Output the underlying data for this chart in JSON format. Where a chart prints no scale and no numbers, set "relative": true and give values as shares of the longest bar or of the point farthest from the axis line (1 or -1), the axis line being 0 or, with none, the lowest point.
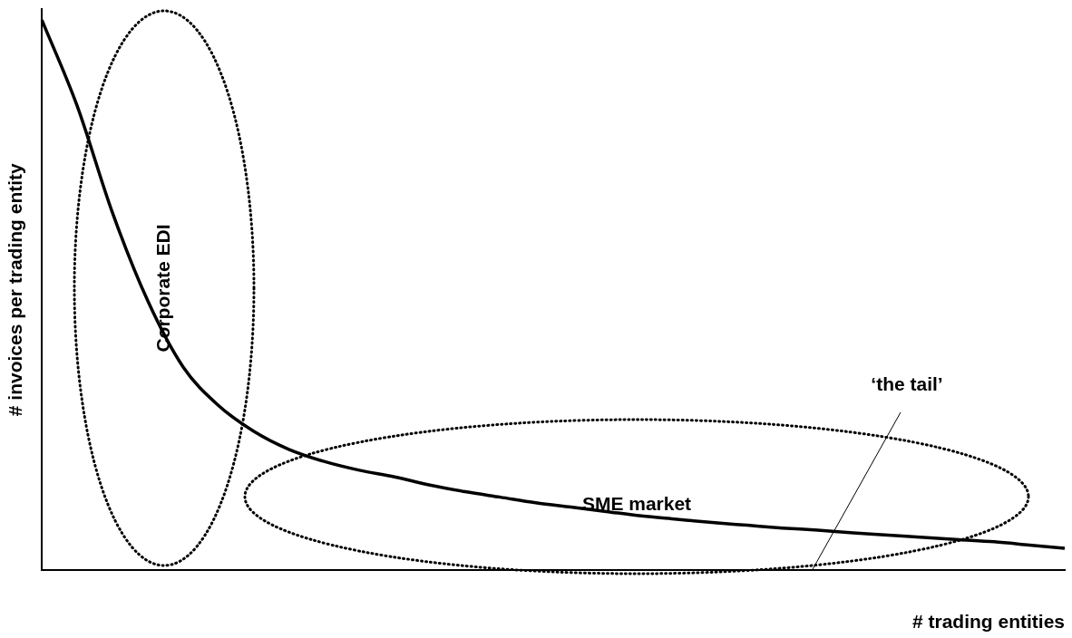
{
  "chart_data": {
    "type": "line",
    "relative": true,
    "xlabel": "# trading entities",
    "ylabel": "# invoices per trading entity",
    "categories": [
      null,
      null,
      null,
      null,
      null,
      null,
      null,
      null,
      null,
      null,
      null,
      null,
      null,
      null,
      null,
      null,
      null,
      null,
      null,
      null,
      null,
      null,
      null,
      null,
      null,
      null,
      null,
      null,
      null,
      null
    ],
    "series": [
      {
        "color": "#000000",
        "values": [
          1.0,
          0.844,
          0.65,
          0.49,
          0.37,
          0.3,
          0.253,
          0.22,
          0.198,
          0.182,
          0.17,
          0.155,
          0.143,
          0.133,
          0.123,
          0.115,
          0.107,
          0.099,
          0.093,
          0.087,
          0.082,
          0.077,
          0.073,
          0.068,
          0.064,
          0.06,
          0.056,
          0.052,
          0.046,
          0.04
        ]
      }
    ],
    "annotations": [
      "Corporate EDI",
      "SME market",
      "‘the tail’"
    ],
    "marker": "none",
    "line_style": "solid",
    "grid": false,
    "legend": false
  }
}
